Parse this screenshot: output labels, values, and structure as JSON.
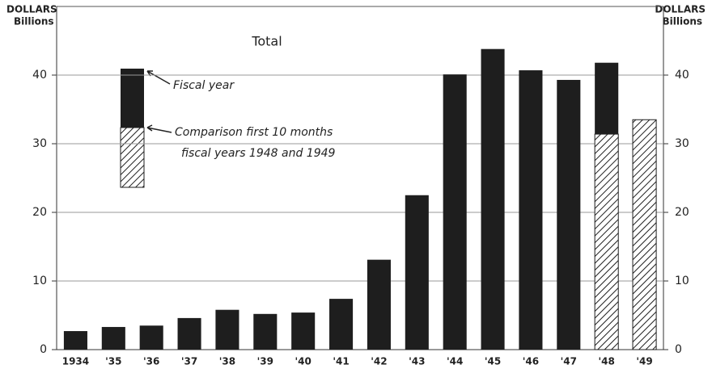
{
  "chart_data": {
    "type": "bar",
    "title": "Total",
    "y_axis_label": [
      "DOLLARS",
      "Billions"
    ],
    "y2_axis_label": [
      "DOLLARS",
      "Billions"
    ],
    "categories": [
      "1934",
      "'35",
      "'36",
      "'37",
      "'38",
      "'39",
      "'40",
      "'41",
      "'42",
      "'43",
      "'44",
      "'45",
      "'46",
      "'47",
      "'48",
      "'49"
    ],
    "series": [
      {
        "name": "Fiscal year",
        "color": "#1e1e1e",
        "values": [
          2.7,
          3.3,
          3.5,
          4.6,
          5.8,
          5.2,
          5.4,
          7.4,
          13.1,
          22.5,
          40.1,
          43.8,
          40.7,
          39.3,
          41.8,
          null
        ]
      },
      {
        "name": "Comparison first 10 months fiscal years 1948 and 1949",
        "color": "#1e1e1e",
        "pattern": "hatch",
        "values": [
          null,
          null,
          null,
          null,
          null,
          null,
          null,
          null,
          null,
          null,
          null,
          null,
          null,
          null,
          31.4,
          33.5
        ]
      }
    ],
    "ylim": [
      0,
      50
    ],
    "yticks": [
      0,
      10,
      20,
      30,
      40
    ],
    "y2lim": [
      0,
      50
    ],
    "y2ticks": [
      0,
      10,
      20,
      30,
      40
    ],
    "grid": true
  }
}
